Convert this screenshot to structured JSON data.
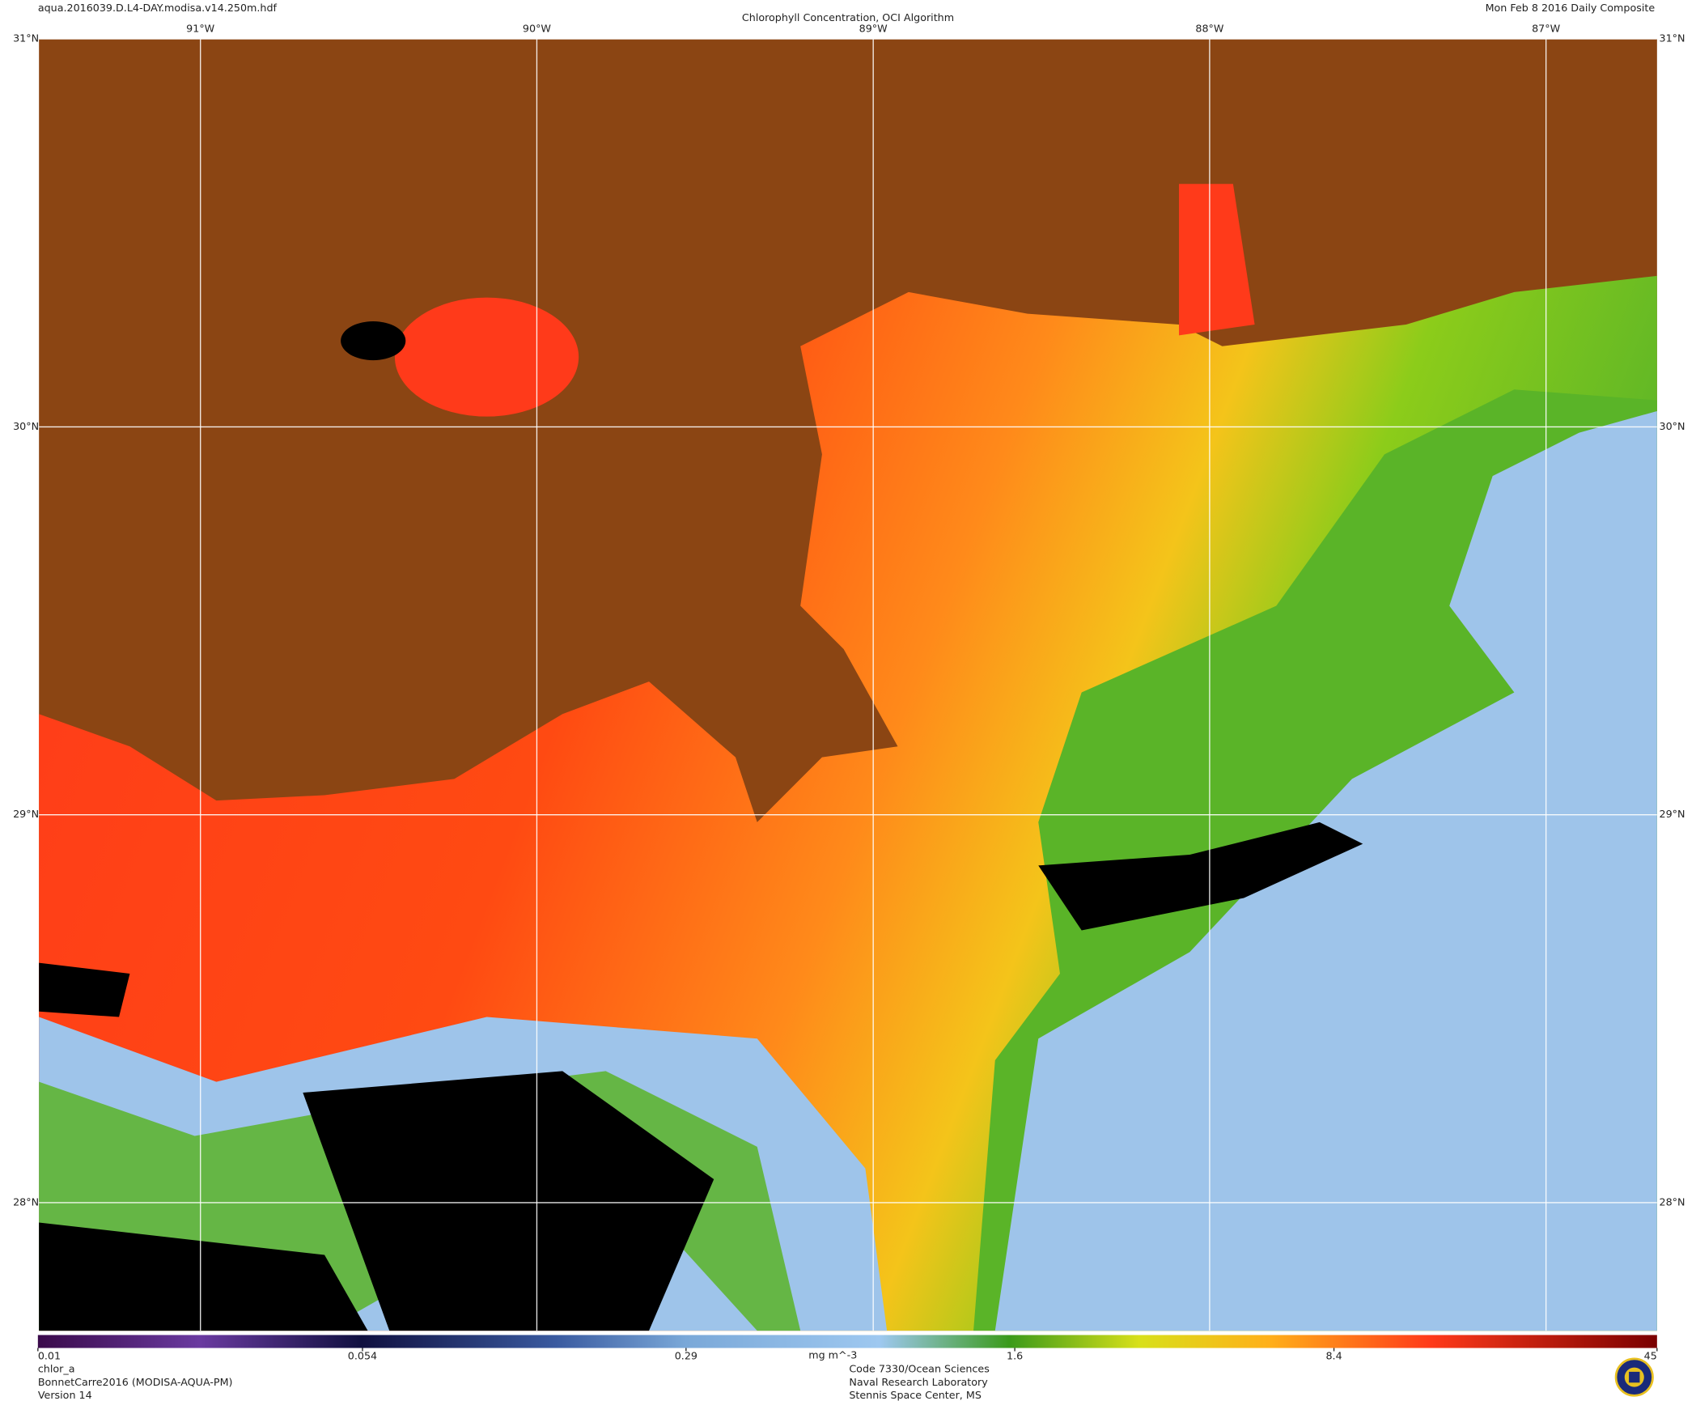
{
  "header": {
    "file": "aqua.2016039.D.L4-DAY.modisa.v14.250m.hdf",
    "title": "Chlorophyll Concentration, OCI Algorithm",
    "date": "Mon Feb  8 2016 Daily Composite"
  },
  "map": {
    "lonlim": [
      -91.48,
      -86.67
    ],
    "latlim": [
      27.67,
      31
    ],
    "lon_ticks": [
      {
        "value": -91,
        "label": "91°W"
      },
      {
        "value": -90,
        "label": "90°W"
      },
      {
        "value": -89,
        "label": "89°W"
      },
      {
        "value": -88,
        "label": "88°W"
      },
      {
        "value": -87,
        "label": "87°W"
      }
    ],
    "lat_ticks": [
      {
        "value": 31,
        "label": "31°N"
      },
      {
        "value": 30,
        "label": "30°N"
      },
      {
        "value": 29,
        "label": "29°N"
      },
      {
        "value": 28,
        "label": "28°N"
      }
    ]
  },
  "colorbar": {
    "log": true,
    "range": [
      0.01,
      45
    ],
    "ticks": [
      0.01,
      0.054,
      0.29,
      1.6,
      8.4,
      45
    ],
    "unit": "mg m^-3"
  },
  "footer": {
    "left": [
      "chlor_a",
      "BonnetCarre2016 (MODISA-AQUA-PM)",
      "Version 14"
    ],
    "center": [
      "Code 7330/Ocean Sciences",
      "Naval Research Laboratory",
      "Stennis Space Center, MS"
    ]
  }
}
